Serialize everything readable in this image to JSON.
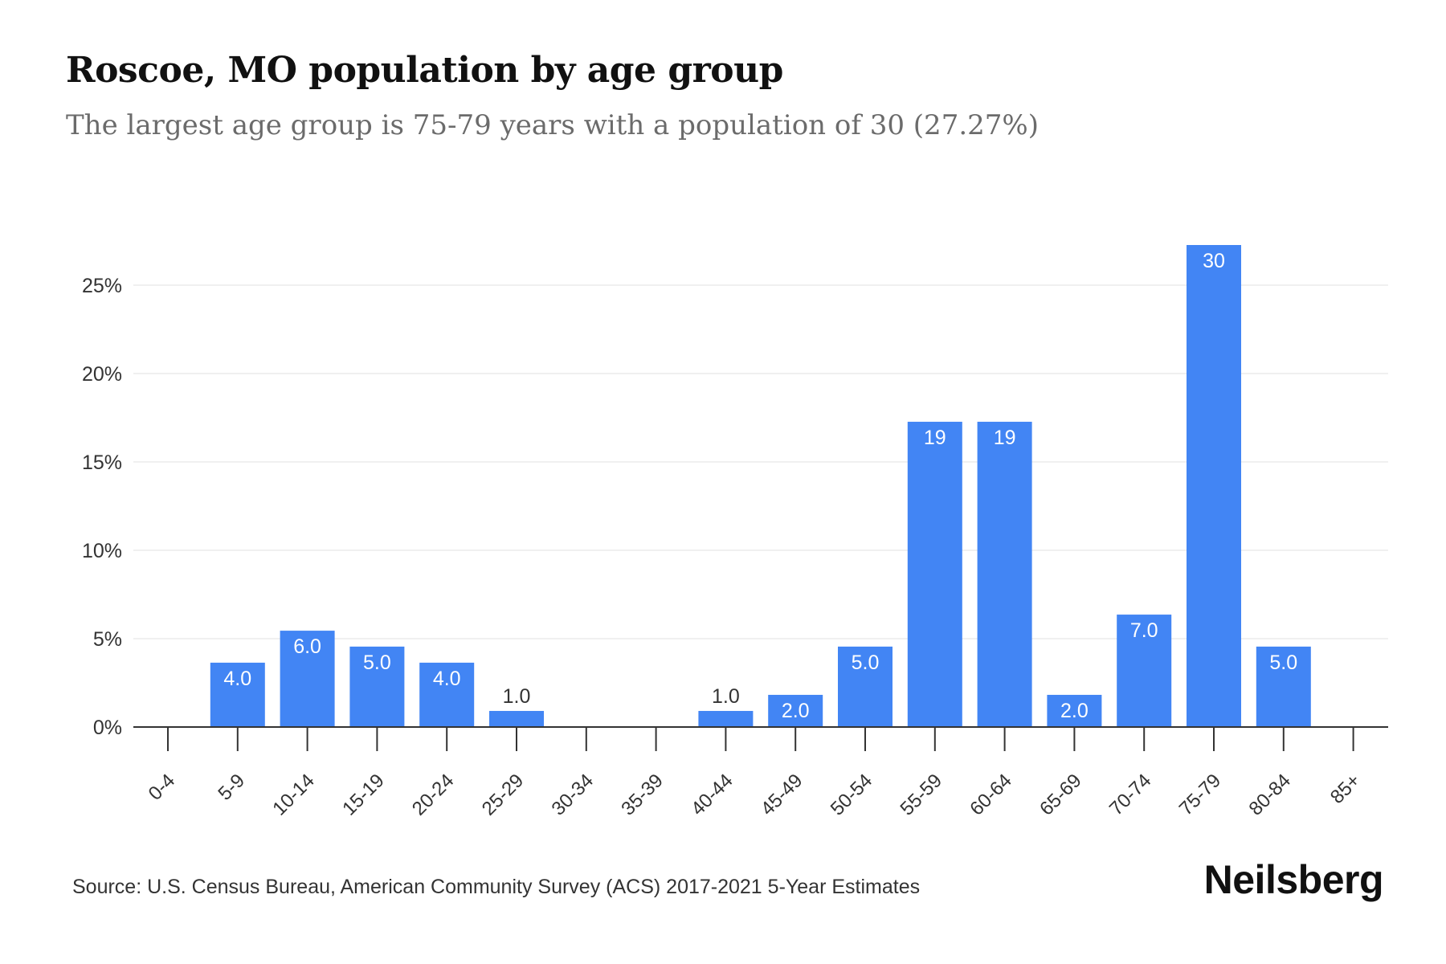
{
  "title": "Roscoe, MO population by age group",
  "subtitle": "The largest age group is 75-79 years with a population of 30 (27.27%)",
  "source": "Source: U.S. Census Bureau, American Community Survey (ACS) 2017-2021 5-Year Estimates",
  "brand": "Neilsberg",
  "colors": {
    "bar": "#4285f4",
    "label_inside": "#ffffff",
    "label_outside": "#333333",
    "grid": "#ececec",
    "axis": "#333333"
  },
  "chart_data": {
    "type": "bar",
    "categories": [
      "0-4",
      "5-9",
      "10-14",
      "15-19",
      "20-24",
      "25-29",
      "30-34",
      "35-39",
      "40-44",
      "45-49",
      "50-54",
      "55-59",
      "60-64",
      "65-69",
      "70-74",
      "75-79",
      "80-84",
      "85+"
    ],
    "values": [
      0,
      4,
      6,
      5,
      4,
      1,
      0,
      0,
      1,
      2,
      5,
      19,
      19,
      2,
      7,
      30,
      5,
      0
    ],
    "percentages": [
      0,
      3.64,
      5.45,
      4.55,
      3.64,
      0.91,
      0,
      0,
      0.91,
      1.82,
      4.55,
      17.27,
      17.27,
      1.82,
      6.36,
      27.27,
      4.55,
      0
    ],
    "data_labels": [
      "",
      "4.0",
      "6.0",
      "5.0",
      "4.0",
      "1.0",
      "",
      "",
      "1.0",
      "2.0",
      "5.0",
      "19",
      "19",
      "2.0",
      "7.0",
      "30",
      "5.0",
      ""
    ],
    "y_ticks": [
      "0%",
      "5%",
      "10%",
      "15%",
      "20%",
      "25%"
    ],
    "y_tick_values": [
      0,
      5,
      10,
      15,
      20,
      25
    ],
    "ylim": [
      0,
      27.27
    ],
    "xlabel": "",
    "ylabel": "",
    "grid": true
  }
}
